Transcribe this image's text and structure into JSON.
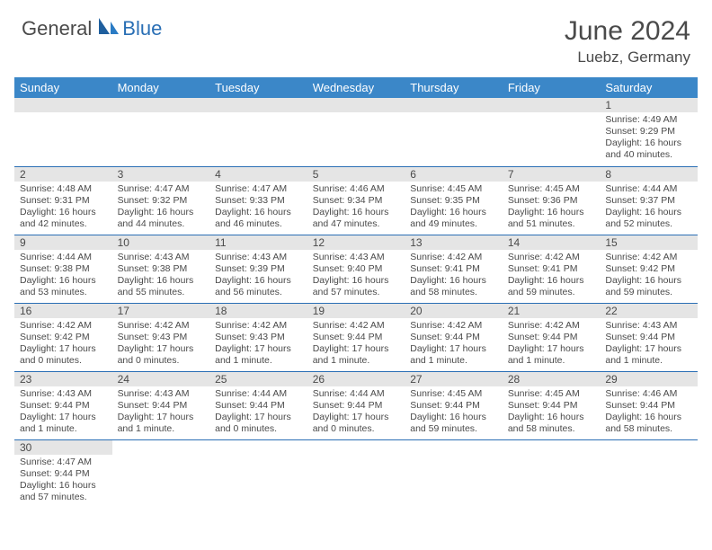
{
  "logo": {
    "part1": "General",
    "part2": "Blue"
  },
  "title": "June 2024",
  "location": "Luebz, Germany",
  "colors": {
    "header_bg": "#3b87c8",
    "header_text": "#ffffff",
    "border": "#2a6fb5",
    "daynum_bg": "#e5e5e5",
    "text": "#4a4a4a",
    "accent": "#2a6fb5"
  },
  "weekdays": [
    "Sunday",
    "Monday",
    "Tuesday",
    "Wednesday",
    "Thursday",
    "Friday",
    "Saturday"
  ],
  "weeks": [
    [
      null,
      null,
      null,
      null,
      null,
      null,
      {
        "n": "1",
        "sr": "Sunrise: 4:49 AM",
        "ss": "Sunset: 9:29 PM",
        "d1": "Daylight: 16 hours",
        "d2": "and 40 minutes."
      }
    ],
    [
      {
        "n": "2",
        "sr": "Sunrise: 4:48 AM",
        "ss": "Sunset: 9:31 PM",
        "d1": "Daylight: 16 hours",
        "d2": "and 42 minutes."
      },
      {
        "n": "3",
        "sr": "Sunrise: 4:47 AM",
        "ss": "Sunset: 9:32 PM",
        "d1": "Daylight: 16 hours",
        "d2": "and 44 minutes."
      },
      {
        "n": "4",
        "sr": "Sunrise: 4:47 AM",
        "ss": "Sunset: 9:33 PM",
        "d1": "Daylight: 16 hours",
        "d2": "and 46 minutes."
      },
      {
        "n": "5",
        "sr": "Sunrise: 4:46 AM",
        "ss": "Sunset: 9:34 PM",
        "d1": "Daylight: 16 hours",
        "d2": "and 47 minutes."
      },
      {
        "n": "6",
        "sr": "Sunrise: 4:45 AM",
        "ss": "Sunset: 9:35 PM",
        "d1": "Daylight: 16 hours",
        "d2": "and 49 minutes."
      },
      {
        "n": "7",
        "sr": "Sunrise: 4:45 AM",
        "ss": "Sunset: 9:36 PM",
        "d1": "Daylight: 16 hours",
        "d2": "and 51 minutes."
      },
      {
        "n": "8",
        "sr": "Sunrise: 4:44 AM",
        "ss": "Sunset: 9:37 PM",
        "d1": "Daylight: 16 hours",
        "d2": "and 52 minutes."
      }
    ],
    [
      {
        "n": "9",
        "sr": "Sunrise: 4:44 AM",
        "ss": "Sunset: 9:38 PM",
        "d1": "Daylight: 16 hours",
        "d2": "and 53 minutes."
      },
      {
        "n": "10",
        "sr": "Sunrise: 4:43 AM",
        "ss": "Sunset: 9:38 PM",
        "d1": "Daylight: 16 hours",
        "d2": "and 55 minutes."
      },
      {
        "n": "11",
        "sr": "Sunrise: 4:43 AM",
        "ss": "Sunset: 9:39 PM",
        "d1": "Daylight: 16 hours",
        "d2": "and 56 minutes."
      },
      {
        "n": "12",
        "sr": "Sunrise: 4:43 AM",
        "ss": "Sunset: 9:40 PM",
        "d1": "Daylight: 16 hours",
        "d2": "and 57 minutes."
      },
      {
        "n": "13",
        "sr": "Sunrise: 4:42 AM",
        "ss": "Sunset: 9:41 PM",
        "d1": "Daylight: 16 hours",
        "d2": "and 58 minutes."
      },
      {
        "n": "14",
        "sr": "Sunrise: 4:42 AM",
        "ss": "Sunset: 9:41 PM",
        "d1": "Daylight: 16 hours",
        "d2": "and 59 minutes."
      },
      {
        "n": "15",
        "sr": "Sunrise: 4:42 AM",
        "ss": "Sunset: 9:42 PM",
        "d1": "Daylight: 16 hours",
        "d2": "and 59 minutes."
      }
    ],
    [
      {
        "n": "16",
        "sr": "Sunrise: 4:42 AM",
        "ss": "Sunset: 9:42 PM",
        "d1": "Daylight: 17 hours",
        "d2": "and 0 minutes."
      },
      {
        "n": "17",
        "sr": "Sunrise: 4:42 AM",
        "ss": "Sunset: 9:43 PM",
        "d1": "Daylight: 17 hours",
        "d2": "and 0 minutes."
      },
      {
        "n": "18",
        "sr": "Sunrise: 4:42 AM",
        "ss": "Sunset: 9:43 PM",
        "d1": "Daylight: 17 hours",
        "d2": "and 1 minute."
      },
      {
        "n": "19",
        "sr": "Sunrise: 4:42 AM",
        "ss": "Sunset: 9:44 PM",
        "d1": "Daylight: 17 hours",
        "d2": "and 1 minute."
      },
      {
        "n": "20",
        "sr": "Sunrise: 4:42 AM",
        "ss": "Sunset: 9:44 PM",
        "d1": "Daylight: 17 hours",
        "d2": "and 1 minute."
      },
      {
        "n": "21",
        "sr": "Sunrise: 4:42 AM",
        "ss": "Sunset: 9:44 PM",
        "d1": "Daylight: 17 hours",
        "d2": "and 1 minute."
      },
      {
        "n": "22",
        "sr": "Sunrise: 4:43 AM",
        "ss": "Sunset: 9:44 PM",
        "d1": "Daylight: 17 hours",
        "d2": "and 1 minute."
      }
    ],
    [
      {
        "n": "23",
        "sr": "Sunrise: 4:43 AM",
        "ss": "Sunset: 9:44 PM",
        "d1": "Daylight: 17 hours",
        "d2": "and 1 minute."
      },
      {
        "n": "24",
        "sr": "Sunrise: 4:43 AM",
        "ss": "Sunset: 9:44 PM",
        "d1": "Daylight: 17 hours",
        "d2": "and 1 minute."
      },
      {
        "n": "25",
        "sr": "Sunrise: 4:44 AM",
        "ss": "Sunset: 9:44 PM",
        "d1": "Daylight: 17 hours",
        "d2": "and 0 minutes."
      },
      {
        "n": "26",
        "sr": "Sunrise: 4:44 AM",
        "ss": "Sunset: 9:44 PM",
        "d1": "Daylight: 17 hours",
        "d2": "and 0 minutes."
      },
      {
        "n": "27",
        "sr": "Sunrise: 4:45 AM",
        "ss": "Sunset: 9:44 PM",
        "d1": "Daylight: 16 hours",
        "d2": "and 59 minutes."
      },
      {
        "n": "28",
        "sr": "Sunrise: 4:45 AM",
        "ss": "Sunset: 9:44 PM",
        "d1": "Daylight: 16 hours",
        "d2": "and 58 minutes."
      },
      {
        "n": "29",
        "sr": "Sunrise: 4:46 AM",
        "ss": "Sunset: 9:44 PM",
        "d1": "Daylight: 16 hours",
        "d2": "and 58 minutes."
      }
    ],
    [
      {
        "n": "30",
        "sr": "Sunrise: 4:47 AM",
        "ss": "Sunset: 9:44 PM",
        "d1": "Daylight: 16 hours",
        "d2": "and 57 minutes."
      },
      null,
      null,
      null,
      null,
      null,
      null
    ]
  ]
}
